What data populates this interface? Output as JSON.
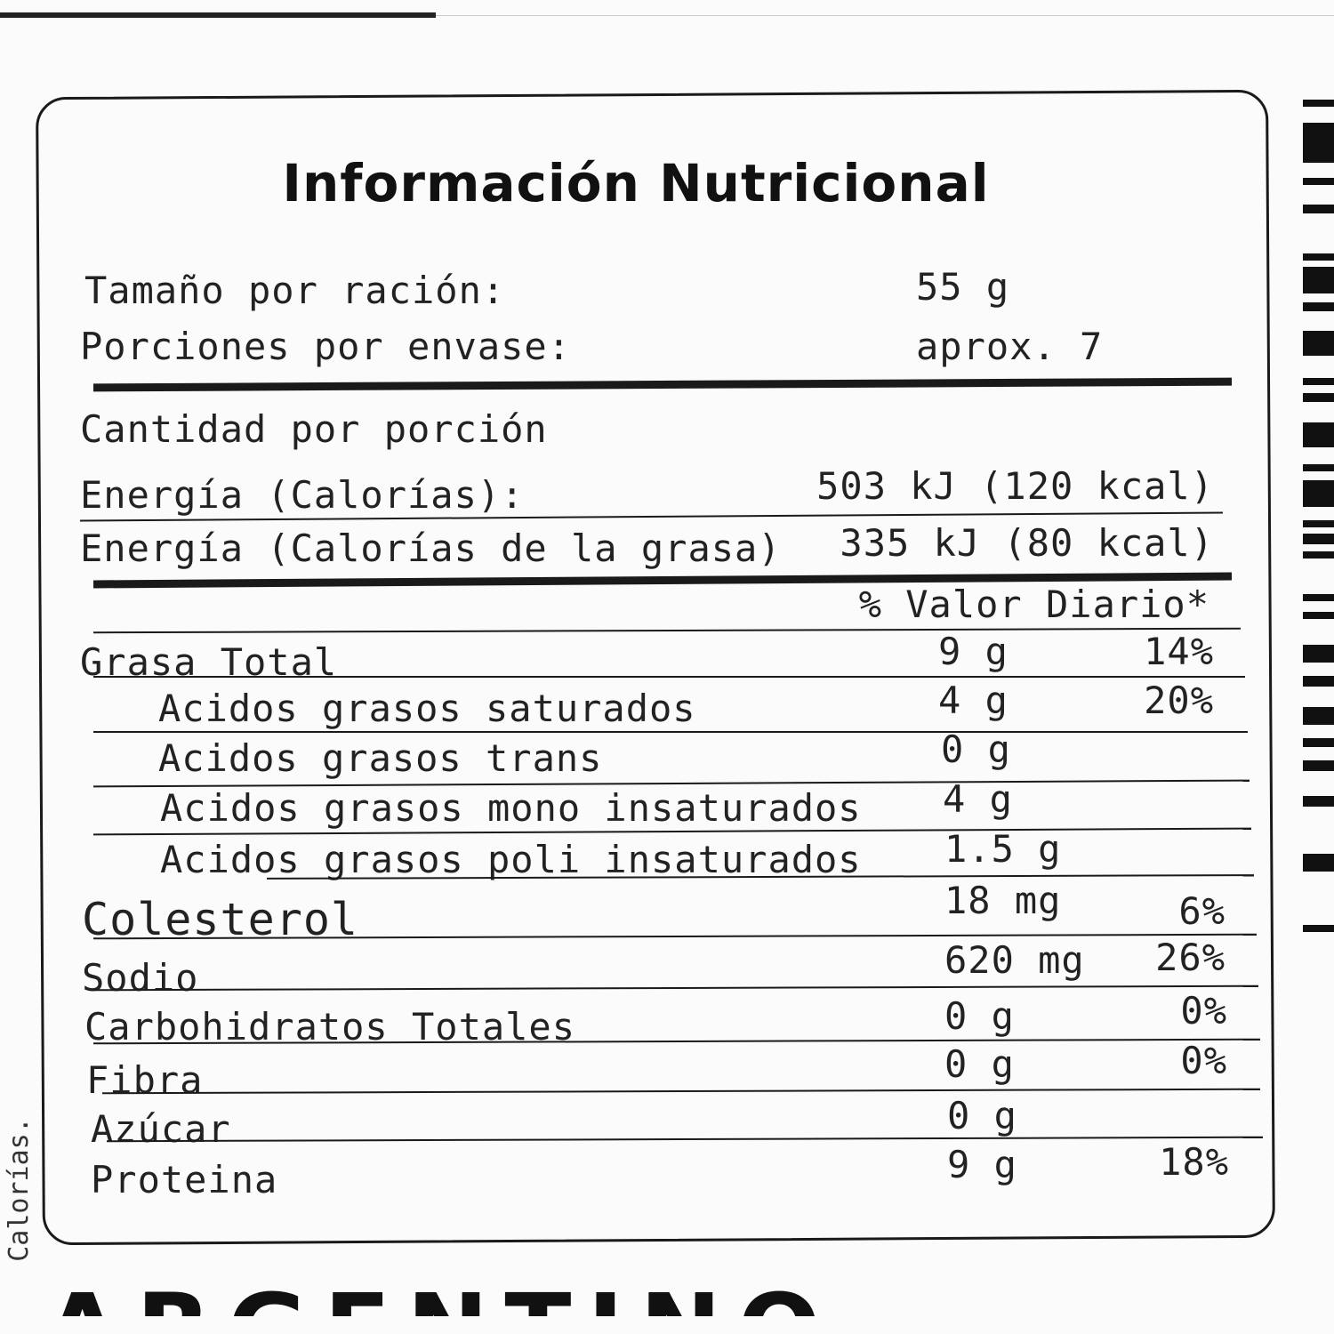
{
  "title": "Información Nutricional",
  "serving": {
    "size_label": "Tamaño por ración:",
    "size_value": "55 g",
    "portions_label": "Porciones por envase:",
    "portions_value": "aprox. 7"
  },
  "amount_label": "Cantidad por porción",
  "energy": {
    "label": "Energía (Calorías):",
    "value": "503  kJ (120 kcal)",
    "fat_label": "Energía (Calorías de la grasa)",
    "fat_value": "335 kJ (80 kcal)"
  },
  "daily_value_header": "% Valor Diario*",
  "nutrients": [
    {
      "name": "Grasa Total",
      "amount": "9 g",
      "dv": "14%"
    },
    {
      "name": "Acidos grasos saturados",
      "amount": "4 g",
      "dv": "20%"
    },
    {
      "name": "Acidos grasos trans",
      "amount": "0 g",
      "dv": ""
    },
    {
      "name": "Acidos grasos mono insaturados",
      "amount": "4 g",
      "dv": ""
    },
    {
      "name": "Acidos grasos poli insaturados",
      "amount": "1.5 g",
      "dv": ""
    },
    {
      "name": "Colesterol",
      "amount": "18 mg",
      "dv": "6%"
    },
    {
      "name": "Sodio",
      "amount": "620 mg",
      "dv": "26%"
    },
    {
      "name": "Carbohidratos Totales",
      "amount": "0 g",
      "dv": "0%"
    },
    {
      "name": "Fibra",
      "amount": "0 g",
      "dv": "0%"
    },
    {
      "name": "Azúcar",
      "amount": "0 g",
      "dv": ""
    },
    {
      "name": "Proteina",
      "amount": "9 g",
      "dv": "18%"
    }
  ],
  "side_text": "Calorías.",
  "bottom_text": "ARGENTINO"
}
